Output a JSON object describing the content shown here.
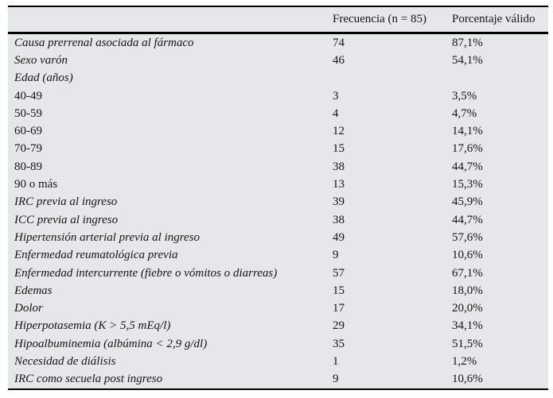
{
  "table": {
    "headers": {
      "variable": "",
      "frecuencia": "Frecuencia (n = 85)",
      "porcentaje": "Porcentaje válido"
    },
    "rows": [
      {
        "label": "Causa prerrenal asociada al fármaco",
        "italic": true,
        "frecuencia": "74",
        "porcentaje": "87,1%"
      },
      {
        "label": "Sexo varón",
        "italic": true,
        "frecuencia": "46",
        "porcentaje": "54,1%"
      },
      {
        "label": "Edad (años)",
        "italic": true,
        "frecuencia": "",
        "porcentaje": ""
      },
      {
        "label": "40-49",
        "italic": false,
        "frecuencia": "3",
        "porcentaje": "3,5%"
      },
      {
        "label": "50-59",
        "italic": false,
        "frecuencia": "4",
        "porcentaje": "4,7%"
      },
      {
        "label": "60-69",
        "italic": false,
        "frecuencia": "12",
        "porcentaje": "14,1%"
      },
      {
        "label": "70-79",
        "italic": false,
        "frecuencia": "15",
        "porcentaje": "17,6%"
      },
      {
        "label": "80-89",
        "italic": false,
        "frecuencia": "38",
        "porcentaje": "44,7%"
      },
      {
        "label": "90 o más",
        "italic": false,
        "frecuencia": "13",
        "porcentaje": "15,3%"
      },
      {
        "label": "IRC previa al ingreso",
        "italic": true,
        "frecuencia": "39",
        "porcentaje": "45,9%"
      },
      {
        "label": "ICC previa al ingreso",
        "italic": true,
        "frecuencia": "38",
        "porcentaje": "44,7%"
      },
      {
        "label": "Hipertensión arterial previa al ingreso",
        "italic": true,
        "frecuencia": "49",
        "porcentaje": "57,6%"
      },
      {
        "label": "Enfermedad reumatológica previa",
        "italic": true,
        "frecuencia": "9",
        "porcentaje": "10,6%"
      },
      {
        "label": "Enfermedad intercurrente (fiebre o vómitos o diarreas)",
        "italic": true,
        "frecuencia": "57",
        "porcentaje": "67,1%"
      },
      {
        "label": "Edemas",
        "italic": true,
        "frecuencia": "15",
        "porcentaje": "18,0%"
      },
      {
        "label": "Dolor",
        "italic": true,
        "frecuencia": "17",
        "porcentaje": "20,0%"
      },
      {
        "label": "Hiperpotasemia (K > 5,5 mEq/l)",
        "italic": true,
        "frecuencia": "29",
        "porcentaje": "34,1%"
      },
      {
        "label": "Hipoalbuminemia (albúmina < 2,9 g/dl)",
        "italic": true,
        "frecuencia": "35",
        "porcentaje": "51,5%"
      },
      {
        "label": "Necesidad de diálisis",
        "italic": true,
        "frecuencia": "1",
        "porcentaje": "1,2%"
      },
      {
        "label": "IRC como secuela post ingreso",
        "italic": true,
        "frecuencia": "9",
        "porcentaje": "10,6%"
      }
    ],
    "colors": {
      "table_background": "#e5e8e9",
      "rule_color": "#000000",
      "text_color": "#141414"
    }
  }
}
